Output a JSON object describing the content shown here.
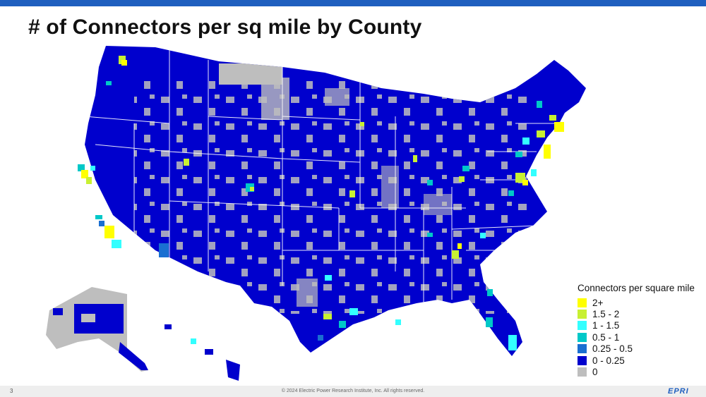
{
  "title": "# of Connectors per sq mile by County",
  "legend": {
    "title": "Connectors per square mile",
    "items": [
      {
        "label": "2+",
        "color": "#ffff00"
      },
      {
        "label": "1.5 - 2",
        "color": "#c8f032"
      },
      {
        "label": "1 - 1.5",
        "color": "#33ffff"
      },
      {
        "label": "0.5 - 1",
        "color": "#00c8c8"
      },
      {
        "label": "0.25 - 0.5",
        "color": "#1a6fd1"
      },
      {
        "label": "0 - 0.25",
        "color": "#0000cd"
      },
      {
        "label": "0",
        "color": "#bebebe"
      }
    ]
  },
  "colors": {
    "brand_blue": "#1f5fbf",
    "county_fill": "#0000cd",
    "no_data": "#bebebe",
    "state_border": "#ffffff"
  },
  "footer": {
    "page_number": "3",
    "copyright": "© 2024 Electric Power Research Institute, Inc. All rights reserved.",
    "logo": "EPRI"
  }
}
